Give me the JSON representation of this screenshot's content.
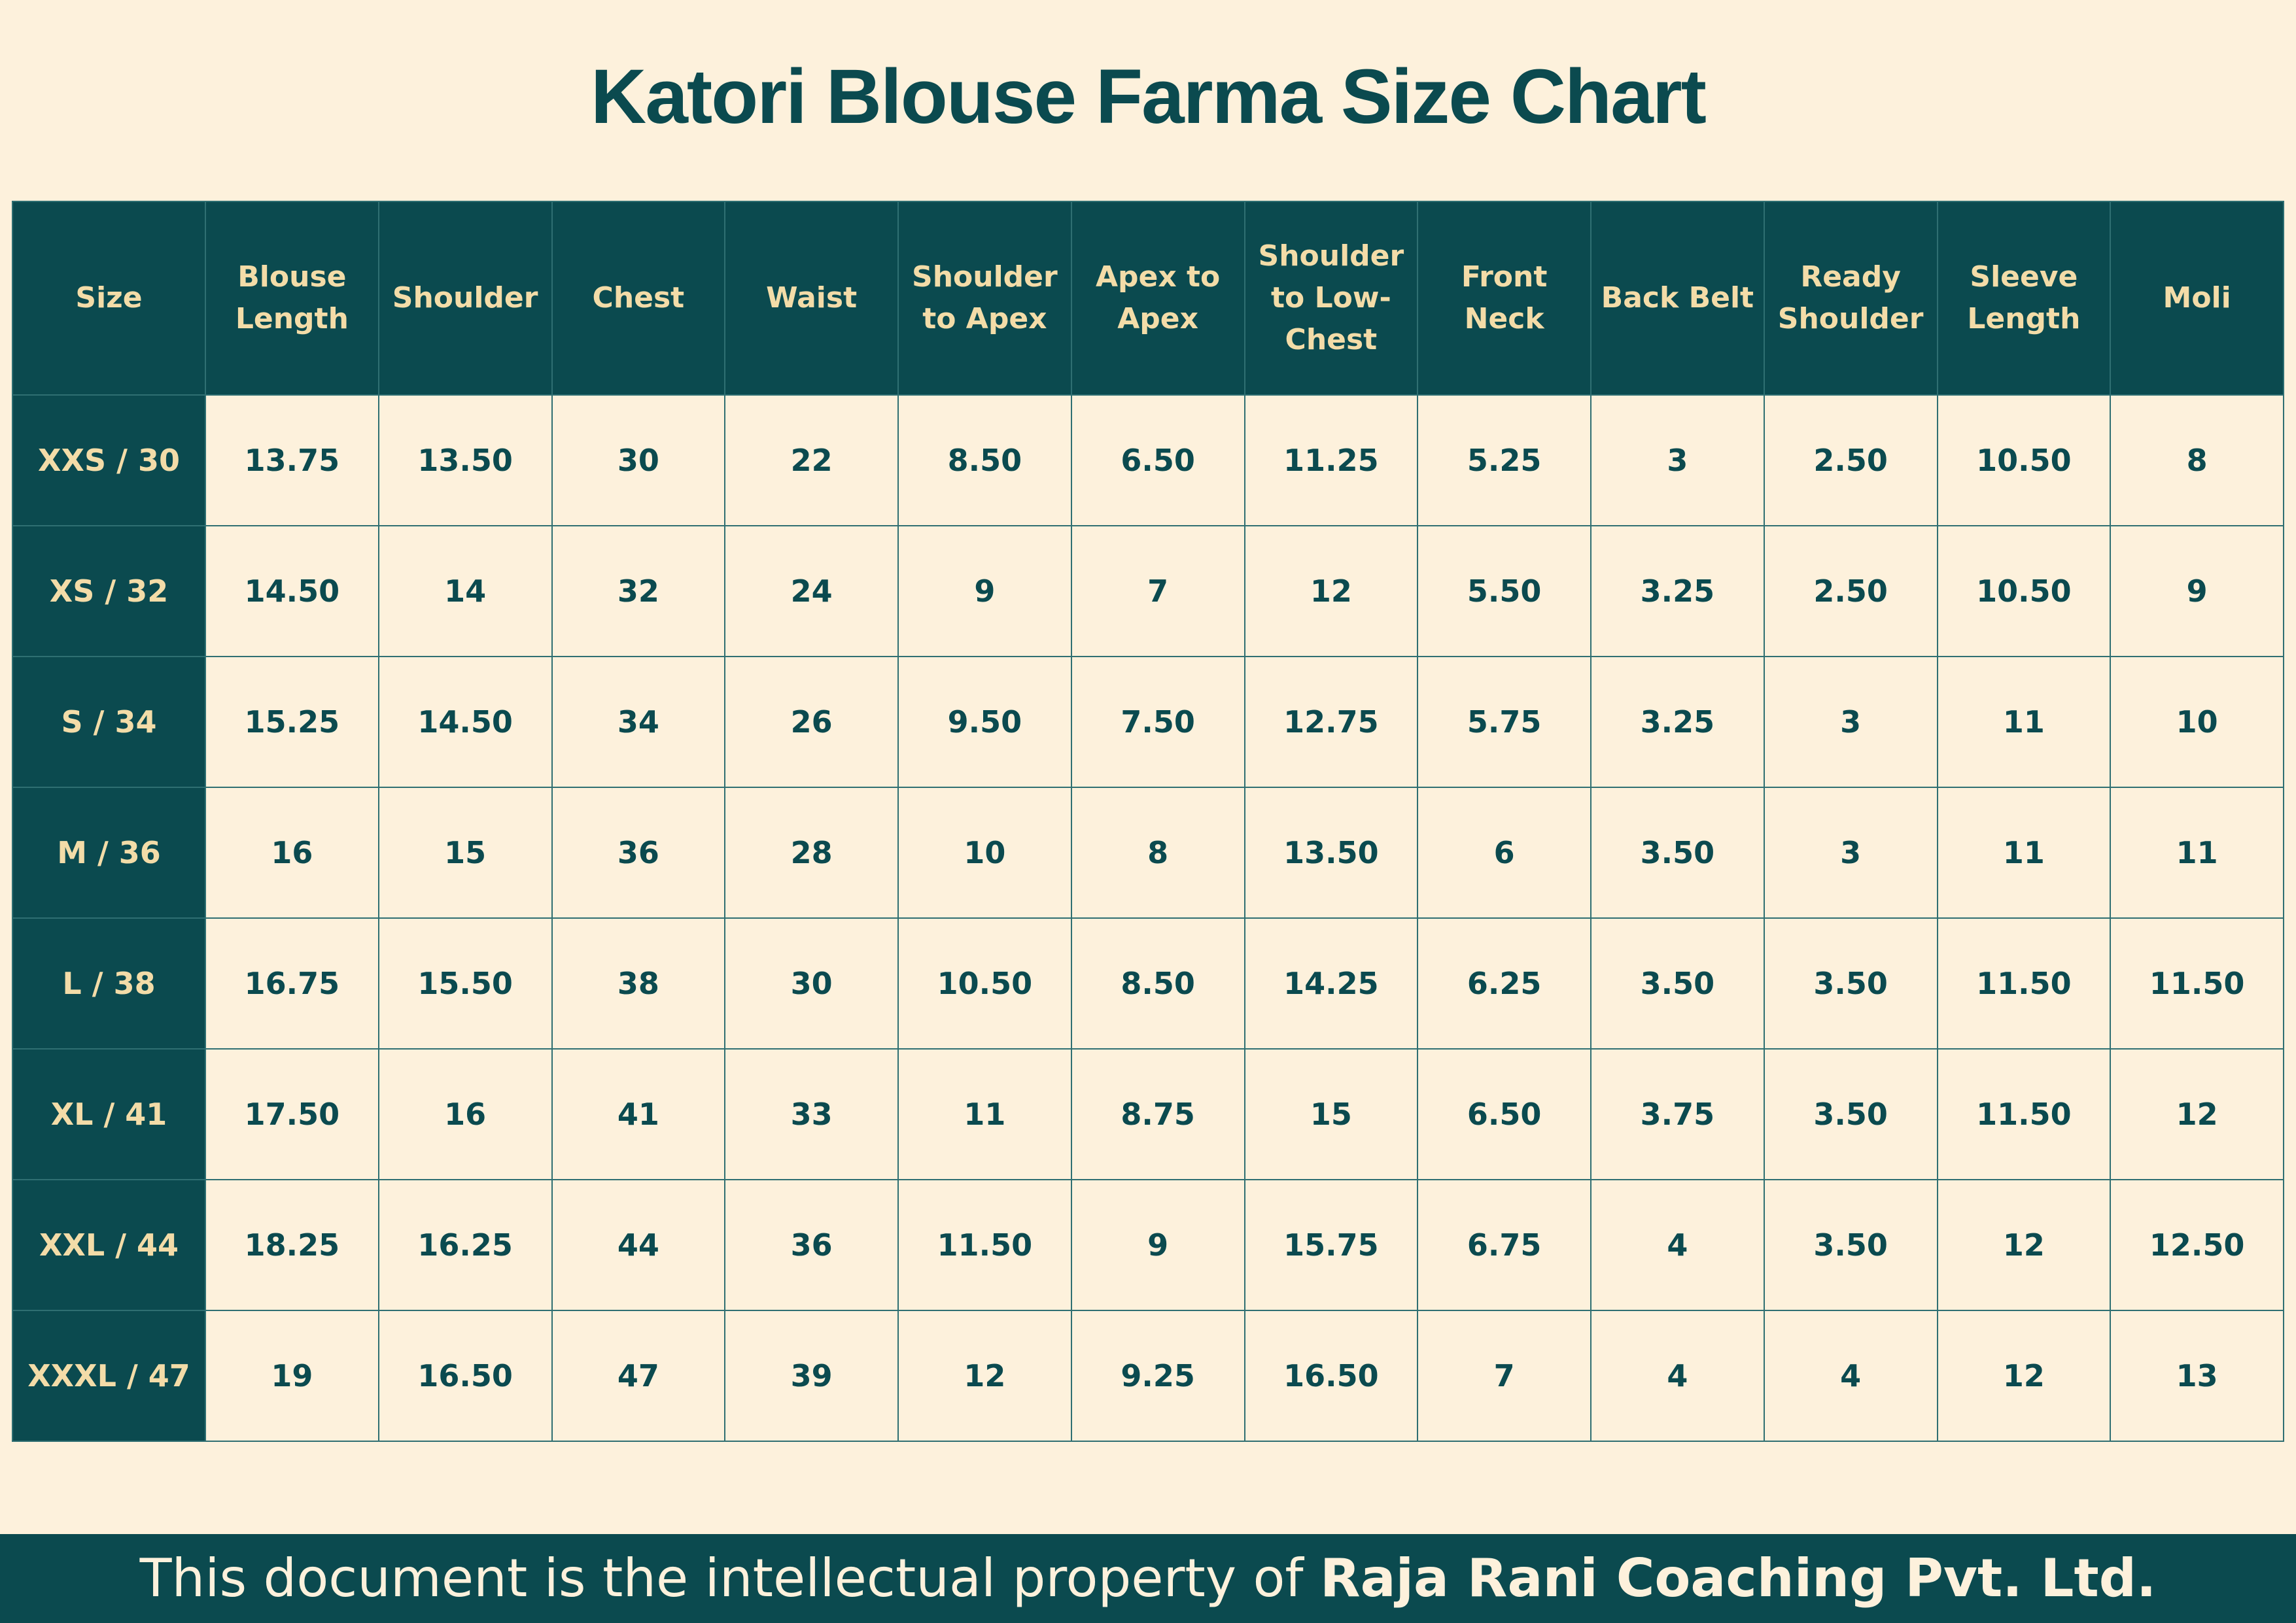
{
  "title": "Katori Blouse Farma Size Chart",
  "table": {
    "headers": [
      "Size",
      "Blouse Length",
      "Shoulder",
      "Chest",
      "Waist",
      "Shoulder to Apex",
      "Apex to Apex",
      "Shoulder to Low-Chest",
      "Front Neck",
      "Back Belt",
      "Ready Shoulder",
      "Sleeve Length",
      "Moli"
    ],
    "rows": [
      [
        "XXS / 30",
        "13.75",
        "13.50",
        "30",
        "22",
        "8.50",
        "6.50",
        "11.25",
        "5.25",
        "3",
        "2.50",
        "10.50",
        "8"
      ],
      [
        "XS / 32",
        "14.50",
        "14",
        "32",
        "24",
        "9",
        "7",
        "12",
        "5.50",
        "3.25",
        "2.50",
        "10.50",
        "9"
      ],
      [
        "S / 34",
        "15.25",
        "14.50",
        "34",
        "26",
        "9.50",
        "7.50",
        "12.75",
        "5.75",
        "3.25",
        "3",
        "11",
        "10"
      ],
      [
        "M / 36",
        "16",
        "15",
        "36",
        "28",
        "10",
        "8",
        "13.50",
        "6",
        "3.50",
        "3",
        "11",
        "11"
      ],
      [
        "L / 38",
        "16.75",
        "15.50",
        "38",
        "30",
        "10.50",
        "8.50",
        "14.25",
        "6.25",
        "3.50",
        "3.50",
        "11.50",
        "11.50"
      ],
      [
        "XL / 41",
        "17.50",
        "16",
        "41",
        "33",
        "11",
        "8.75",
        "15",
        "6.50",
        "3.75",
        "3.50",
        "11.50",
        "12"
      ],
      [
        "XXL / 44",
        "18.25",
        "16.25",
        "44",
        "36",
        "11.50",
        "9",
        "15.75",
        "6.75",
        "4",
        "3.50",
        "12",
        "12.50"
      ],
      [
        "XXXL / 47",
        "19",
        "16.50",
        "47",
        "39",
        "12",
        "9.25",
        "16.50",
        "7",
        "4",
        "4",
        "12",
        "13"
      ]
    ]
  },
  "footer": {
    "text": "This document is the intellectual property of",
    "bold": "Raja Rani Coaching Pvt. Ltd."
  }
}
